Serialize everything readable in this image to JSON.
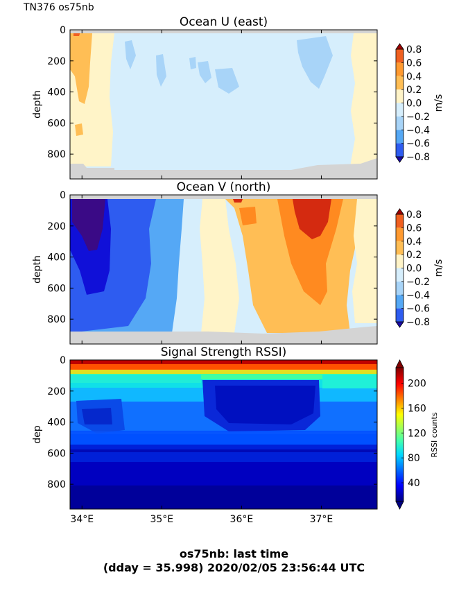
{
  "header": {
    "corner_label": "TN376 os75nb"
  },
  "footer": {
    "line1": "os75nb: last time",
    "line2": "(dday = 35.998) 2020/02/05 23:56:44 UTC"
  },
  "chart_data": [
    {
      "type": "heatmap",
      "title": "Ocean U (east)",
      "ylabel": "depth",
      "colorbar_label": "m/s",
      "colorbar_ticks": [
        "0.8",
        "0.6",
        "0.4",
        "0.2",
        "0.0",
        "−0.2",
        "−0.4",
        "−0.6",
        "−0.8"
      ],
      "colorbar_values": [
        0.8,
        0.6,
        0.4,
        0.2,
        0.0,
        -0.2,
        -0.4,
        -0.6,
        -0.8
      ],
      "yticks": [
        "0",
        "200",
        "400",
        "600",
        "800"
      ],
      "ytick_values": [
        0,
        200,
        400,
        600,
        800
      ],
      "ylim": [
        960,
        0
      ],
      "xlim": [
        33.85,
        37.7
      ],
      "colors": [
        "#1010d8",
        "#2e5cf0",
        "#55a8f5",
        "#a8d4f8",
        "#d6eefc",
        "#fff4c8",
        "#ffd27a",
        "#ffa840",
        "#f06020",
        "#c01010"
      ],
      "description_of_field": "mostly near zero (light blue); weak eastward 0.0-0.4 m/s along west edge and east edge"
    },
    {
      "type": "heatmap",
      "title": "Ocean V (north)",
      "ylabel": "depth",
      "colorbar_label": "m/s",
      "colorbar_ticks": [
        "0.8",
        "0.6",
        "0.4",
        "0.2",
        "0.0",
        "−0.2",
        "−0.4",
        "−0.6",
        "−0.8"
      ],
      "colorbar_values": [
        0.8,
        0.6,
        0.4,
        0.2,
        0.0,
        -0.2,
        -0.4,
        -0.6,
        -0.8
      ],
      "yticks": [
        "0",
        "200",
        "400",
        "600",
        "800"
      ],
      "ytick_values": [
        0,
        200,
        400,
        600,
        800
      ],
      "ylim": [
        960,
        0
      ],
      "xlim": [
        33.85,
        37.7
      ]
    },
    {
      "type": "heatmap",
      "title": "Signal Strength RSSI)",
      "ylabel": "dep",
      "colorbar_label": "RSSI counts",
      "colorbar_ticks": [
        "200",
        "160",
        "120",
        "80",
        "40"
      ],
      "colorbar_values": [
        200,
        160,
        120,
        80,
        40
      ],
      "yticks": [
        "0",
        "200",
        "400",
        "600",
        "800"
      ],
      "ytick_values": [
        0,
        200,
        400,
        600,
        800
      ],
      "ylim": [
        960,
        0
      ],
      "xticks": [
        "34°E",
        "35°E",
        "36°E",
        "37°E"
      ],
      "xtick_values": [
        34,
        35,
        36,
        37
      ],
      "xlim": [
        33.85,
        37.7
      ]
    }
  ]
}
